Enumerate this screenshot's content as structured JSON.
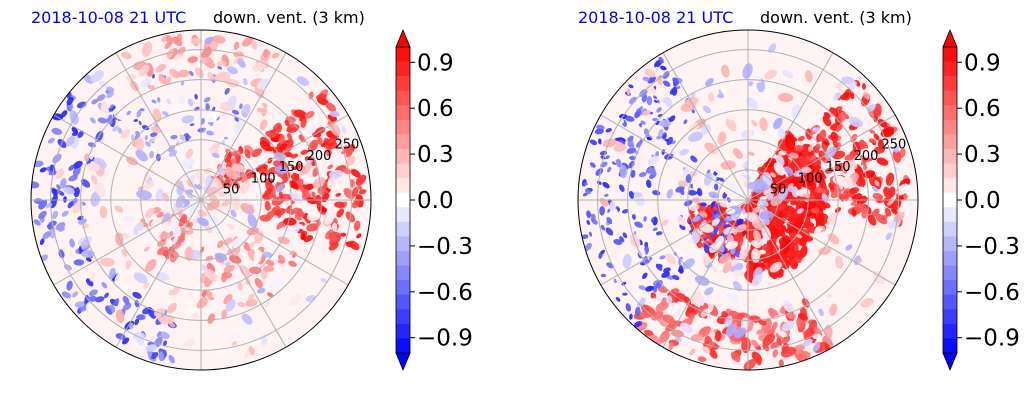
{
  "chart_data": [
    {
      "type": "heatmap",
      "projection": "polar",
      "title_left": "2018-10-08 21 UTC",
      "title_right": "down. vent. (3 km)",
      "radial_ticks": [
        50,
        100,
        150,
        200,
        250
      ],
      "grid": true,
      "colorbar": {
        "ticks": [
          0.9,
          0.6,
          0.3,
          0.0,
          -0.3,
          -0.6,
          -0.9
        ],
        "tick_labels": [
          "0.9",
          "0.6",
          "0.3",
          "0.0",
          "−0.3",
          "−0.6",
          "−0.9"
        ],
        "vmin": -1.0,
        "vmax": 1.0,
        "levels": 21,
        "extend": "both",
        "cmap": "bwr",
        "colors": {
          "low": "#0000ff",
          "mid": "#ffffff",
          "high": "#ff0000"
        }
      }
    },
    {
      "type": "heatmap",
      "projection": "polar",
      "title_left": "2018-10-08 21 UTC",
      "title_right": "down. vent. (3 km)",
      "radial_ticks": [
        50,
        100,
        150,
        200,
        250
      ],
      "grid": true,
      "colorbar": {
        "ticks": [
          0.9,
          0.6,
          0.3,
          0.0,
          -0.3,
          -0.6,
          -0.9
        ],
        "tick_labels": [
          "0.9",
          "0.6",
          "0.3",
          "0.0",
          "−0.3",
          "−0.6",
          "−0.9"
        ],
        "vmin": -1.0,
        "vmax": 1.0,
        "levels": 21,
        "extend": "both",
        "cmap": "bwr",
        "colors": {
          "low": "#0000ff",
          "mid": "#ffffff",
          "high": "#ff0000"
        }
      }
    }
  ]
}
